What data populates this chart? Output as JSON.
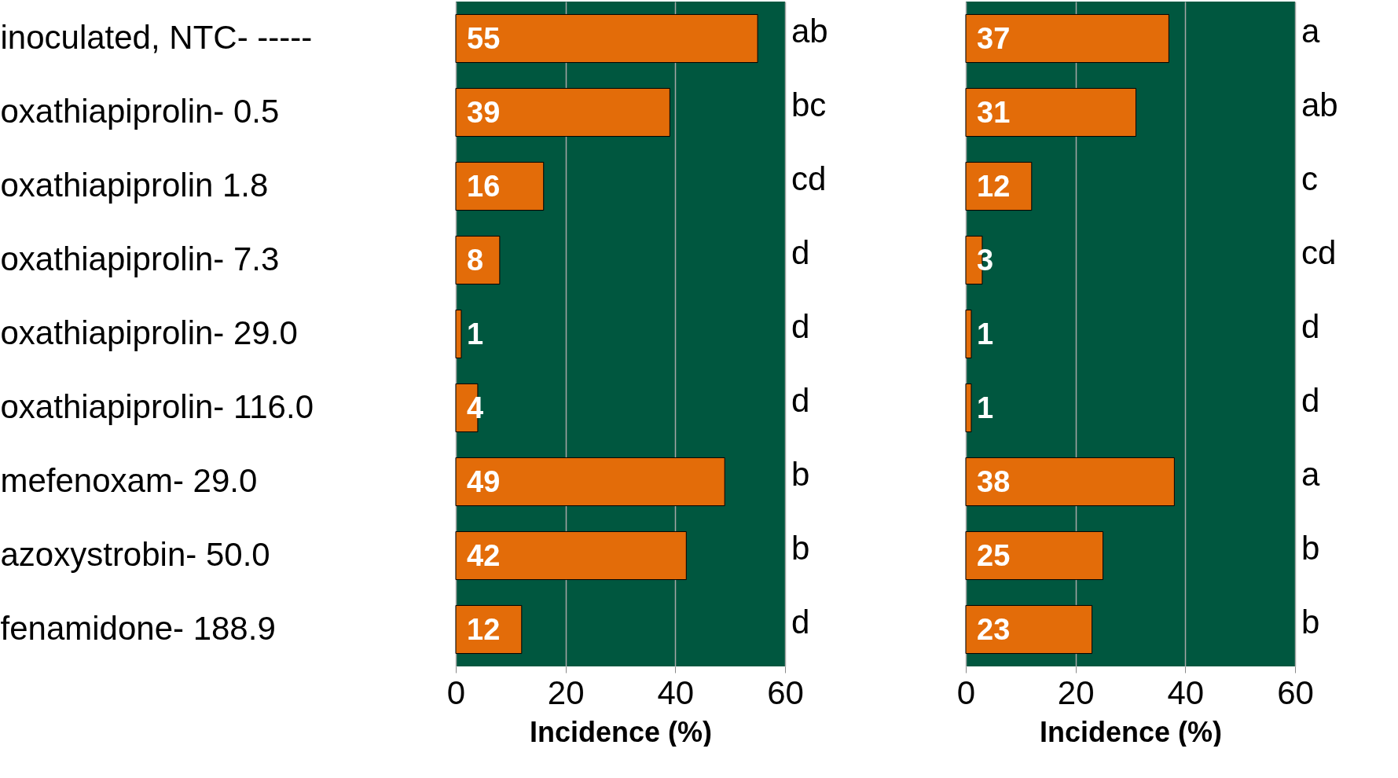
{
  "chart_data": [
    {
      "type": "bar",
      "orientation": "horizontal",
      "categories": [
        "inoculated, NTC- -----",
        "oxathiapiprolin- 0.5",
        "oxathiapiprolin 1.8",
        "oxathiapiprolin- 7.3",
        "oxathiapiprolin- 29.0",
        "oxathiapiprolin- 116.0",
        "mefenoxam- 29.0",
        "azoxystrobin- 50.0",
        "fenamidone- 188.9"
      ],
      "values": [
        55,
        39,
        16,
        8,
        1,
        4,
        49,
        42,
        12
      ],
      "color": "#e36c09",
      "data_labels": true,
      "xlabel": "Incidence (%)",
      "xlim": [
        0,
        60
      ],
      "xticks": [
        0,
        20,
        40,
        60
      ],
      "grid": "x",
      "annotations": [
        "ab",
        "bc",
        "cd",
        "d",
        "d",
        "d",
        "b",
        "b",
        "d"
      ]
    },
    {
      "type": "bar",
      "orientation": "horizontal",
      "categories": [
        null,
        null,
        null,
        null,
        null,
        null,
        null,
        null,
        null
      ],
      "values": [
        37,
        31,
        12,
        3,
        1,
        1,
        38,
        25,
        23
      ],
      "color": "#e36c09",
      "data_labels": true,
      "xlabel": "Incidence (%)",
      "xlim": [
        0,
        60
      ],
      "xticks": [
        0,
        20,
        40,
        60
      ],
      "grid": "x",
      "tick_labels": "x",
      "annotations": [
        "a",
        "ab",
        "c",
        "cd",
        "d",
        "d",
        "a",
        "b",
        "b"
      ]
    }
  ]
}
